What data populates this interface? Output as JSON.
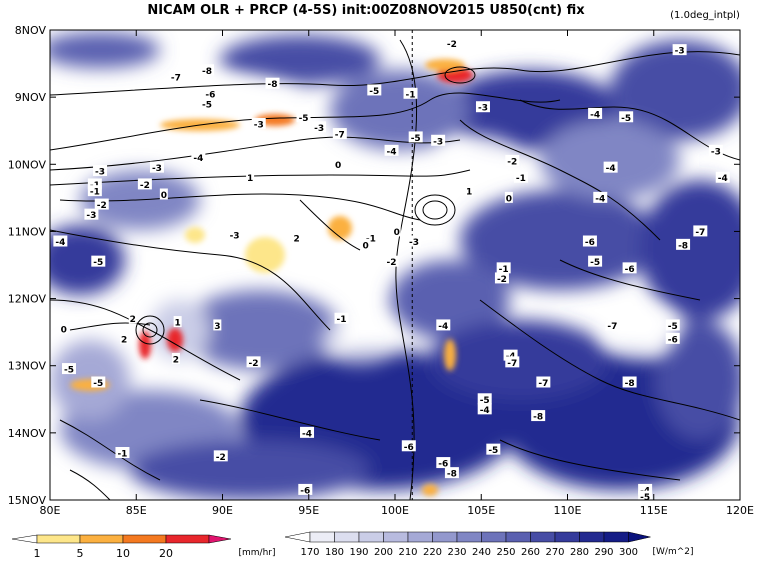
{
  "header": {
    "title": "NICAM  OLR + PRCP (4-5S) init:00Z08NOV2015 U850(cnt) fix",
    "note": "(1.0deg_intpl)"
  },
  "chart_data": {
    "type": "heatmap",
    "title": "NICAM  OLR + PRCP (4-5S) init:00Z08NOV2015 U850(cnt) fix",
    "xlabel": "",
    "ylabel": "",
    "x_ticks": [
      "80E",
      "85E",
      "90E",
      "95E",
      "100E",
      "105E",
      "110E",
      "115E",
      "120E"
    ],
    "x_values": [
      80,
      85,
      90,
      95,
      100,
      105,
      110,
      115,
      120
    ],
    "xlim": [
      80,
      120
    ],
    "y_ticks": [
      "8NOV",
      "9NOV",
      "10NOV",
      "11NOV",
      "12NOV",
      "13NOV",
      "14NOV",
      "15NOV"
    ],
    "y_values": [
      8,
      9,
      10,
      11,
      12,
      13,
      14,
      15
    ],
    "ylim": [
      8,
      15
    ],
    "dashed_reference_line": {
      "x": 101
    },
    "precip_colorbar": {
      "ticks": [
        "1",
        "5",
        "10",
        "20"
      ],
      "unit": "[mm/hr]",
      "colors": [
        "#ffffff",
        "#fde68a",
        "#fbb040",
        "#f47920",
        "#e8262c",
        "#e0146e"
      ]
    },
    "olr_colorbar": {
      "ticks": [
        "170",
        "180",
        "190",
        "200",
        "210",
        "220",
        "230",
        "240",
        "250",
        "260",
        "270",
        "280",
        "290",
        "300"
      ],
      "unit": "[W/m^2]",
      "colors": [
        "#ffffff",
        "#ecedf6",
        "#dcdeef",
        "#cacde7",
        "#b8bbdf",
        "#a5a9d6",
        "#9398cd",
        "#8086c4",
        "#6d73ba",
        "#5a60b0",
        "#474da5",
        "#353b9b",
        "#232a90",
        "#141c86",
        "#0a127c"
      ]
    },
    "contour_labels": [
      {
        "text": "-2",
        "x": 103.3,
        "y": 8.2
      },
      {
        "text": "-3",
        "x": 116.5,
        "y": 8.3
      },
      {
        "text": "-7",
        "x": 87.3,
        "y": 8.7
      },
      {
        "text": "-8",
        "x": 89.1,
        "y": 8.6
      },
      {
        "text": "-8",
        "x": 92.9,
        "y": 8.8
      },
      {
        "text": "-6",
        "x": 89.3,
        "y": 8.95
      },
      {
        "text": "-5",
        "x": 89.1,
        "y": 9.1
      },
      {
        "text": "-5",
        "x": 98.8,
        "y": 8.9
      },
      {
        "text": "-1",
        "x": 100.9,
        "y": 8.95
      },
      {
        "text": "-3",
        "x": 105.1,
        "y": 9.15
      },
      {
        "text": "-4",
        "x": 111.6,
        "y": 9.25
      },
      {
        "text": "-5",
        "x": 113.4,
        "y": 9.3
      },
      {
        "text": "-3",
        "x": 92.1,
        "y": 9.4
      },
      {
        "text": "-5",
        "x": 94.7,
        "y": 9.3
      },
      {
        "text": "-3",
        "x": 95.6,
        "y": 9.45
      },
      {
        "text": "-7",
        "x": 96.8,
        "y": 9.55
      },
      {
        "text": "-5",
        "x": 101.2,
        "y": 9.6
      },
      {
        "text": "-3",
        "x": 102.5,
        "y": 9.65
      },
      {
        "text": "-4",
        "x": 88.6,
        "y": 9.9
      },
      {
        "text": "-4",
        "x": 99.8,
        "y": 9.8
      },
      {
        "text": "-3",
        "x": 118.6,
        "y": 9.8
      },
      {
        "text": "-2",
        "x": 106.8,
        "y": 9.95
      },
      {
        "text": "-4",
        "x": 112.5,
        "y": 10.05
      },
      {
        "text": "-3",
        "x": 86.2,
        "y": 10.05
      },
      {
        "text": "-4",
        "x": 119.0,
        "y": 10.2
      },
      {
        "text": "-1",
        "x": 107.3,
        "y": 10.2
      },
      {
        "text": "-3",
        "x": 82.9,
        "y": 10.1
      },
      {
        "text": "-1",
        "x": 82.6,
        "y": 10.3
      },
      {
        "text": "-2",
        "x": 85.5,
        "y": 10.3
      },
      {
        "text": "-1",
        "x": 82.6,
        "y": 10.4
      },
      {
        "text": "-2",
        "x": 83.0,
        "y": 10.6
      },
      {
        "text": "-3",
        "x": 82.4,
        "y": 10.75
      },
      {
        "text": "0",
        "x": 86.6,
        "y": 10.45
      },
      {
        "text": "1",
        "x": 91.6,
        "y": 10.2
      },
      {
        "text": "0",
        "x": 96.7,
        "y": 10.0
      },
      {
        "text": "1",
        "x": 104.3,
        "y": 10.4
      },
      {
        "text": "0",
        "x": 106.6,
        "y": 10.5
      },
      {
        "text": "-4",
        "x": 111.9,
        "y": 10.5
      },
      {
        "text": "-1",
        "x": 98.6,
        "y": 11.1
      },
      {
        "text": "0",
        "x": 100.1,
        "y": 11.0
      },
      {
        "text": "-3",
        "x": 90.7,
        "y": 11.05
      },
      {
        "text": "2",
        "x": 94.3,
        "y": 11.1
      },
      {
        "text": "0",
        "x": 98.3,
        "y": 11.2
      },
      {
        "text": "-3",
        "x": 101.1,
        "y": 11.15
      },
      {
        "text": "-4",
        "x": 80.6,
        "y": 11.15
      },
      {
        "text": "-6",
        "x": 111.3,
        "y": 11.15
      },
      {
        "text": "-7",
        "x": 117.7,
        "y": 11.0
      },
      {
        "text": "-8",
        "x": 116.7,
        "y": 11.2
      },
      {
        "text": "-2",
        "x": 99.8,
        "y": 11.45
      },
      {
        "text": "-5",
        "x": 82.8,
        "y": 11.45
      },
      {
        "text": "-5",
        "x": 111.6,
        "y": 11.45
      },
      {
        "text": "-6",
        "x": 113.6,
        "y": 11.55
      },
      {
        "text": "-1",
        "x": 106.3,
        "y": 11.55
      },
      {
        "text": "-2",
        "x": 106.2,
        "y": 11.7
      },
      {
        "text": "2",
        "x": 84.8,
        "y": 12.3
      },
      {
        "text": "1",
        "x": 87.4,
        "y": 12.35
      },
      {
        "text": "3",
        "x": 89.7,
        "y": 12.4
      },
      {
        "text": "-1",
        "x": 96.9,
        "y": 12.3
      },
      {
        "text": "-4",
        "x": 102.8,
        "y": 12.4
      },
      {
        "text": "-7",
        "x": 112.6,
        "y": 12.4
      },
      {
        "text": "-5",
        "x": 116.1,
        "y": 12.4
      },
      {
        "text": "-6",
        "x": 116.1,
        "y": 12.6
      },
      {
        "text": "0",
        "x": 80.8,
        "y": 12.45
      },
      {
        "text": "2",
        "x": 84.3,
        "y": 12.6
      },
      {
        "text": "2",
        "x": 87.3,
        "y": 12.9
      },
      {
        "text": "-2",
        "x": 91.8,
        "y": 12.95
      },
      {
        "text": "-4",
        "x": 106.7,
        "y": 12.85
      },
      {
        "text": "-7",
        "x": 106.8,
        "y": 12.95
      },
      {
        "text": "-5",
        "x": 81.1,
        "y": 13.05
      },
      {
        "text": "-5",
        "x": 82.8,
        "y": 13.25
      },
      {
        "text": "-7",
        "x": 108.6,
        "y": 13.25
      },
      {
        "text": "-8",
        "x": 113.6,
        "y": 13.25
      },
      {
        "text": "-5",
        "x": 105.2,
        "y": 13.5
      },
      {
        "text": "-4",
        "x": 105.2,
        "y": 13.65
      },
      {
        "text": "-8",
        "x": 108.3,
        "y": 13.75
      },
      {
        "text": "-4",
        "x": 94.9,
        "y": 14.0
      },
      {
        "text": "-6",
        "x": 100.8,
        "y": 14.2
      },
      {
        "text": "-5",
        "x": 105.7,
        "y": 14.25
      },
      {
        "text": "-2",
        "x": 89.9,
        "y": 14.35
      },
      {
        "text": "-1",
        "x": 84.2,
        "y": 14.3
      },
      {
        "text": "-6",
        "x": 102.8,
        "y": 14.45
      },
      {
        "text": "-8",
        "x": 103.3,
        "y": 14.6
      },
      {
        "text": "-6",
        "x": 94.8,
        "y": 14.85
      },
      {
        "text": "-4",
        "x": 114.5,
        "y": 14.85
      },
      {
        "text": "-5",
        "x": 114.5,
        "y": 14.95
      }
    ]
  }
}
